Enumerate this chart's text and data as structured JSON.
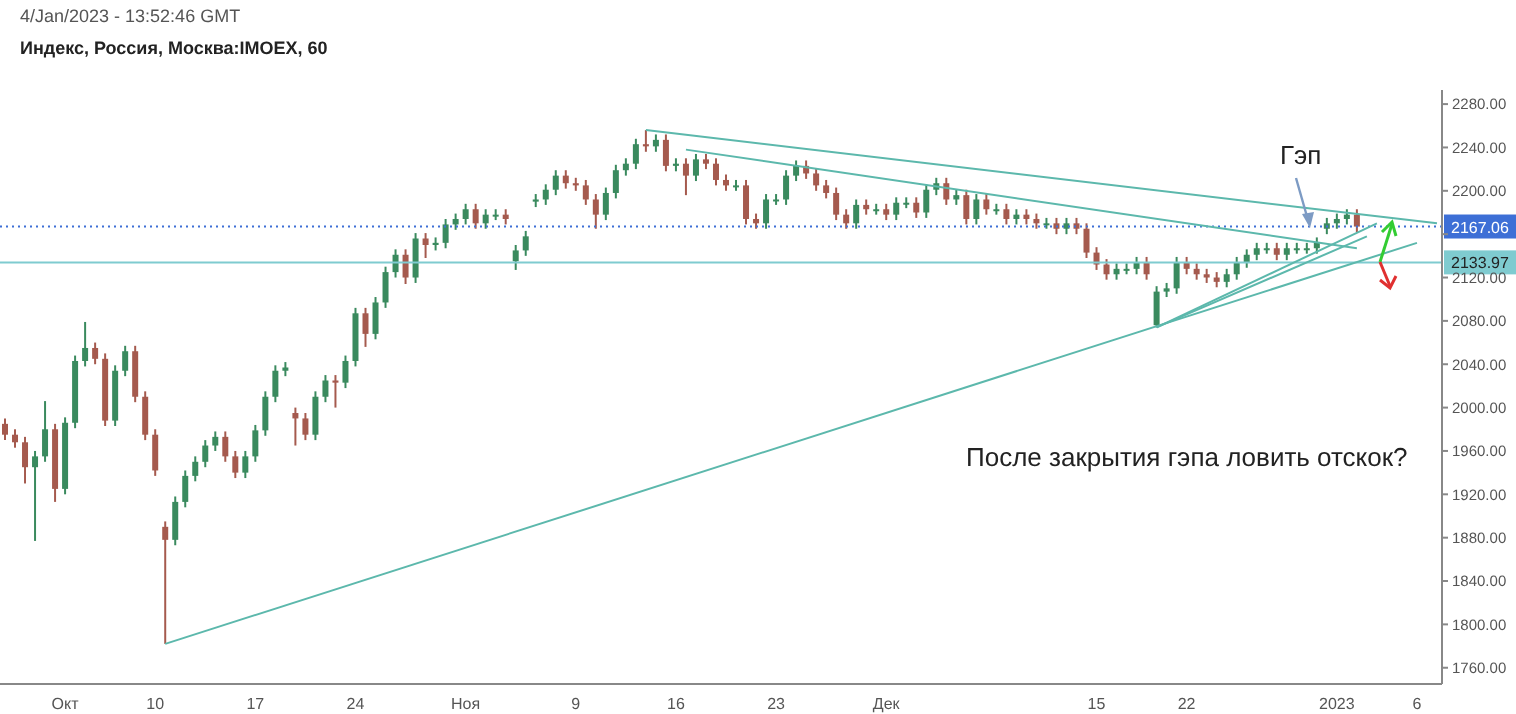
{
  "chart_data": {
    "type": "candlestick",
    "title": "Индекс, Россия, Москва:IMOEX, 60",
    "subtitle": "4/Jan/2023 - 13:52:46 GMT",
    "categories": [
      null,
      null,
      null,
      null,
      null,
      null,
      "Окт",
      null,
      null,
      null,
      null,
      null,
      null,
      null,
      null,
      "10",
      null,
      null,
      null,
      null,
      null,
      null,
      null,
      null,
      null,
      "17",
      null,
      null,
      null,
      null,
      null,
      null,
      null,
      null,
      null,
      "24",
      null,
      null,
      null,
      null,
      null,
      null,
      null,
      null,
      null,
      null,
      "Ноя",
      null,
      null,
      null,
      null,
      null,
      null,
      null,
      null,
      null,
      null,
      "9",
      null,
      null,
      null,
      null,
      null,
      null,
      null,
      null,
      null,
      "16",
      null,
      null,
      null,
      null,
      null,
      null,
      null,
      null,
      null,
      "23",
      null,
      null,
      null,
      null,
      null,
      null,
      null,
      null,
      null,
      null,
      "Дек",
      null,
      null,
      null,
      null,
      null,
      null,
      null,
      null,
      null,
      null,
      null,
      null,
      null,
      null,
      null,
      null,
      null,
      null,
      null,
      null,
      "15",
      null,
      null,
      null,
      null,
      null,
      null,
      null,
      null,
      "22",
      null,
      null,
      null,
      null,
      null,
      null,
      null,
      null,
      null,
      null,
      null,
      null,
      null,
      null,
      "2023",
      null,
      null,
      null,
      null,
      null,
      null,
      null,
      "6",
      null,
      null
    ],
    "series": [
      {
        "colors": [
          "#a55a4e",
          "#a55a4e",
          "#a55a4e",
          "#3a8a5e",
          "#3a8a5e",
          "#a55a4e",
          "#3a8a5e",
          "#3a8a5e",
          "#3a8a5e",
          "#a55a4e",
          "#a55a4e",
          "#3a8a5e",
          "#3a8a5e",
          "#a55a4e",
          "#a55a4e",
          "#a55a4e",
          "#a55a4e",
          "#3a8a5e",
          "#3a8a5e",
          "#3a8a5e",
          "#3a8a5e",
          "#3a8a5e",
          "#a55a4e",
          "#a55a4e",
          "#3a8a5e",
          "#3a8a5e",
          "#3a8a5e",
          "#3a8a5e",
          "#3a8a5e",
          "#a55a4e",
          "#a55a4e",
          "#3a8a5e",
          "#3a8a5e",
          "#a55a4e",
          "#3a8a5e",
          "#3a8a5e",
          "#a55a4e",
          "#3a8a5e",
          "#3a8a5e",
          "#3a8a5e",
          "#a55a4e",
          "#3a8a5e",
          "#a55a4e",
          "#3a8a5e",
          "#3a8a5e",
          "#3a8a5e",
          "#3a8a5e",
          "#a55a4e",
          "#3a8a5e",
          "#3a8a5e",
          "#a55a4e",
          "#3a8a5e",
          "#3a8a5e",
          "#3a8a5e",
          "#3a8a5e",
          "#3a8a5e",
          "#a55a4e",
          "#a55a4e",
          "#a55a4e",
          "#a55a4e",
          "#3a8a5e",
          "#3a8a5e",
          "#3a8a5e",
          "#3a8a5e",
          "#a55a4e",
          "#3a8a5e",
          "#a55a4e",
          "#3a8a5e",
          "#a55a4e",
          "#3a8a5e",
          "#a55a4e",
          "#a55a4e",
          "#a55a4e",
          "#3a8a5e",
          "#a55a4e",
          "#a55a4e",
          "#3a8a5e",
          "#3a8a5e",
          "#3a8a5e",
          "#3a8a5e",
          "#a55a4e",
          "#a55a4e",
          "#a55a4e",
          "#a55a4e",
          "#a55a4e",
          "#3a8a5e",
          "#a55a4e",
          "#3a8a5e",
          "#a55a4e",
          "#3a8a5e",
          "#3a8a5e",
          "#a55a4e",
          "#3a8a5e",
          "#3a8a5e",
          "#a55a4e",
          "#3a8a5e",
          "#a55a4e",
          "#3a8a5e",
          "#a55a4e",
          "#3a8a5e",
          "#a55a4e",
          "#3a8a5e",
          "#a55a4e",
          "#a55a4e",
          "#3a8a5e",
          "#a55a4e",
          "#3a8a5e",
          "#a55a4e",
          "#a55a4e",
          "#a55a4e",
          "#a55a4e",
          "#3a8a5e",
          "#3a8a5e",
          "#3a8a5e",
          "#a55a4e",
          "#3a8a5e",
          "#3a8a5e",
          "#3a8a5e",
          "#a55a4e",
          "#a55a4e",
          "#a55a4e",
          "#a55a4e",
          "#3a8a5e",
          "#3a8a5e",
          "#3a8a5e",
          "#3a8a5e",
          "#3a8a5e",
          "#a55a4e",
          "#3a8a5e",
          "#3a8a5e",
          "#3a8a5e",
          "#3a8a5e",
          "#3a8a5e",
          "#3a8a5e",
          "#3a8a5e",
          "#a55a4e",
          null,
          null,
          null,
          null,
          null,
          null,
          null,
          null
        ],
        "ohlc": [
          [
            1985,
            1990,
            1970,
            1975
          ],
          [
            1975,
            1980,
            1963,
            1968
          ],
          [
            1968,
            1973,
            1930,
            1945
          ],
          [
            1945,
            1960,
            1877,
            1955
          ],
          [
            1955,
            2006,
            1950,
            1980
          ],
          [
            1980,
            1985,
            1913,
            1925
          ],
          [
            1925,
            1991,
            1920,
            1986
          ],
          [
            1986,
            2048,
            1981,
            2043
          ],
          [
            2043,
            2079,
            2038,
            2055
          ],
          [
            2055,
            2060,
            2040,
            2045
          ],
          [
            2045,
            2050,
            1983,
            1988
          ],
          [
            1988,
            2039,
            1983,
            2034
          ],
          [
            2034,
            2057,
            2029,
            2052
          ],
          [
            2052,
            2057,
            2005,
            2010
          ],
          [
            2010,
            2015,
            1970,
            1975
          ],
          [
            1975,
            1980,
            1937,
            1942
          ],
          [
            1890,
            1895,
            1782,
            1878
          ],
          [
            1878,
            1918,
            1873,
            1913
          ],
          [
            1913,
            1942,
            1908,
            1937
          ],
          [
            1937,
            1955,
            1932,
            1950
          ],
          [
            1950,
            1970,
            1945,
            1965
          ],
          [
            1965,
            1978,
            1960,
            1973
          ],
          [
            1973,
            1978,
            1950,
            1955
          ],
          [
            1955,
            1960,
            1935,
            1940
          ],
          [
            1940,
            1960,
            1935,
            1955
          ],
          [
            1955,
            1984,
            1950,
            1979
          ],
          [
            1979,
            2015,
            1974,
            2010
          ],
          [
            2010,
            2039,
            2005,
            2034
          ],
          [
            2034,
            2042,
            2029,
            2037
          ],
          [
            1995,
            2000,
            1965,
            1990
          ],
          [
            1990,
            1995,
            1970,
            1975
          ],
          [
            1975,
            2015,
            1970,
            2010
          ],
          [
            2010,
            2030,
            2005,
            2025
          ],
          [
            2025,
            2030,
            2000,
            2023
          ],
          [
            2023,
            2048,
            2018,
            2043
          ],
          [
            2043,
            2092,
            2038,
            2087
          ],
          [
            2087,
            2092,
            2056,
            2068
          ],
          [
            2068,
            2102,
            2063,
            2097
          ],
          [
            2097,
            2130,
            2092,
            2125
          ],
          [
            2125,
            2146,
            2120,
            2141
          ],
          [
            2141,
            2146,
            2114,
            2120
          ],
          [
            2120,
            2161,
            2115,
            2156
          ],
          [
            2156,
            2161,
            2138,
            2150
          ],
          [
            2150,
            2157,
            2145,
            2152
          ],
          [
            2152,
            2174,
            2147,
            2169
          ],
          [
            2169,
            2179,
            2164,
            2174
          ],
          [
            2174,
            2188,
            2169,
            2183
          ],
          [
            2183,
            2188,
            2165,
            2170
          ],
          [
            2170,
            2183,
            2165,
            2178
          ],
          [
            2178,
            2183,
            2173,
            2178
          ],
          [
            2178,
            2183,
            2169,
            2174
          ],
          [
            2135,
            2150,
            2127,
            2145
          ],
          [
            2145,
            2163,
            2140,
            2158
          ],
          [
            2190,
            2197,
            2185,
            2192
          ],
          [
            2192,
            2206,
            2187,
            2201
          ],
          [
            2201,
            2219,
            2196,
            2214
          ],
          [
            2214,
            2219,
            2202,
            2207
          ],
          [
            2207,
            2212,
            2200,
            2205
          ],
          [
            2205,
            2210,
            2187,
            2192
          ],
          [
            2192,
            2197,
            2165,
            2178
          ],
          [
            2178,
            2203,
            2173,
            2198
          ],
          [
            2198,
            2224,
            2193,
            2219
          ],
          [
            2219,
            2230,
            2214,
            2225
          ],
          [
            2225,
            2248,
            2220,
            2243
          ],
          [
            2243,
            2256,
            2236,
            2241
          ],
          [
            2241,
            2252,
            2236,
            2247
          ],
          [
            2247,
            2252,
            2218,
            2223
          ],
          [
            2223,
            2230,
            2218,
            2225
          ],
          [
            2225,
            2230,
            2196,
            2214
          ],
          [
            2214,
            2234,
            2209,
            2229
          ],
          [
            2229,
            2234,
            2220,
            2225
          ],
          [
            2225,
            2230,
            2205,
            2210
          ],
          [
            2210,
            2215,
            2200,
            2205
          ],
          [
            2205,
            2210,
            2200,
            2205
          ],
          [
            2205,
            2210,
            2169,
            2174
          ],
          [
            2174,
            2179,
            2165,
            2170
          ],
          [
            2170,
            2197,
            2165,
            2192
          ],
          [
            2192,
            2197,
            2187,
            2192
          ],
          [
            2192,
            2219,
            2187,
            2214
          ],
          [
            2214,
            2228,
            2209,
            2223
          ],
          [
            2223,
            2228,
            2211,
            2216
          ],
          [
            2216,
            2221,
            2200,
            2205
          ],
          [
            2205,
            2210,
            2193,
            2198
          ],
          [
            2198,
            2203,
            2173,
            2178
          ],
          [
            2178,
            2183,
            2165,
            2170
          ],
          [
            2170,
            2192,
            2165,
            2187
          ],
          [
            2187,
            2192,
            2178,
            2183
          ],
          [
            2183,
            2188,
            2178,
            2183
          ],
          [
            2183,
            2188,
            2173,
            2178
          ],
          [
            2178,
            2194,
            2173,
            2189
          ],
          [
            2189,
            2194,
            2184,
            2189
          ],
          [
            2189,
            2194,
            2175,
            2180
          ],
          [
            2180,
            2206,
            2175,
            2201
          ],
          [
            2201,
            2212,
            2196,
            2207
          ],
          [
            2207,
            2212,
            2187,
            2192
          ],
          [
            2192,
            2201,
            2187,
            2196
          ],
          [
            2196,
            2201,
            2169,
            2174
          ],
          [
            2174,
            2197,
            2169,
            2192
          ],
          [
            2192,
            2197,
            2178,
            2183
          ],
          [
            2183,
            2188,
            2178,
            2183
          ],
          [
            2183,
            2188,
            2169,
            2174
          ],
          [
            2174,
            2183,
            2169,
            2178
          ],
          [
            2178,
            2183,
            2169,
            2174
          ],
          [
            2174,
            2179,
            2165,
            2170
          ],
          [
            2170,
            2175,
            2165,
            2170
          ],
          [
            2170,
            2175,
            2160,
            2165
          ],
          [
            2165,
            2175,
            2160,
            2170
          ],
          [
            2170,
            2175,
            2160,
            2165
          ],
          [
            2165,
            2170,
            2138,
            2143
          ],
          [
            2143,
            2148,
            2127,
            2132
          ],
          [
            2132,
            2137,
            2118,
            2123
          ],
          [
            2123,
            2133,
            2118,
            2128
          ],
          [
            2128,
            2133,
            2123,
            2128
          ],
          [
            2128,
            2139,
            2123,
            2134
          ],
          [
            2134,
            2139,
            2118,
            2123
          ],
          [
            2076,
            2112,
            2074,
            2107
          ],
          [
            2107,
            2115,
            2102,
            2110
          ],
          [
            2110,
            2139,
            2105,
            2134
          ],
          [
            2134,
            2139,
            2123,
            2128
          ],
          [
            2128,
            2133,
            2118,
            2123
          ],
          [
            2123,
            2128,
            2115,
            2120
          ],
          [
            2120,
            2125,
            2111,
            2116
          ],
          [
            2116,
            2128,
            2111,
            2123
          ],
          [
            2123,
            2139,
            2118,
            2134
          ],
          [
            2134,
            2146,
            2129,
            2141
          ],
          [
            2141,
            2152,
            2136,
            2147
          ],
          [
            2147,
            2152,
            2142,
            2147
          ],
          [
            2147,
            2152,
            2136,
            2141
          ],
          [
            2141,
            2152,
            2136,
            2147
          ],
          [
            2147,
            2152,
            2142,
            2147
          ],
          [
            2147,
            2152,
            2142,
            2147
          ],
          [
            2147,
            2157,
            2142,
            2152
          ],
          [
            2165,
            2175,
            2160,
            2170
          ],
          [
            2170,
            2179,
            2165,
            2174
          ],
          [
            2174,
            2183,
            2169,
            2178
          ],
          [
            2178,
            2183,
            2162,
            2167
          ],
          null,
          null,
          null,
          null,
          null,
          null,
          null,
          null
        ]
      },
      {
        "type": "line",
        "color": "#5cb8ac",
        "values": [
          null,
          null,
          null,
          null,
          null,
          null,
          null,
          null,
          null,
          null,
          null,
          null,
          null,
          null,
          null,
          null,
          1782,
          null,
          null,
          null,
          null,
          null,
          null,
          null,
          null,
          null,
          null,
          null,
          null,
          null,
          null,
          null,
          null,
          null,
          null,
          null,
          null,
          null,
          null,
          null,
          null,
          null,
          null,
          null,
          null,
          null,
          null,
          null,
          null,
          null,
          null,
          null,
          null,
          null,
          null,
          null,
          null,
          null,
          null,
          null,
          null,
          null,
          null,
          null,
          null,
          null,
          null,
          null,
          null,
          null,
          null,
          null,
          null,
          null,
          null,
          null,
          null,
          null,
          null,
          null,
          null,
          null,
          null,
          null,
          null,
          null,
          null,
          null,
          null,
          null,
          null,
          null,
          null,
          null,
          null,
          null,
          null,
          null,
          null,
          null,
          null,
          null,
          null,
          null,
          null,
          null,
          null,
          null,
          null,
          null,
          null,
          null,
          null,
          null,
          null,
          null,
          null,
          null,
          null,
          null,
          null,
          null,
          null,
          null,
          null,
          null,
          null,
          null,
          null,
          null,
          null,
          null,
          null,
          null,
          null,
          null,
          null,
          null,
          null,
          null,
          null,
          2152,
          null,
          null
        ]
      },
      {
        "type": "line",
        "color": "#5cb8ac",
        "values": [
          null,
          null,
          null,
          null,
          null,
          null,
          null,
          null,
          null,
          null,
          null,
          null,
          null,
          null,
          null,
          null,
          null,
          null,
          null,
          null,
          null,
          null,
          null,
          null,
          null,
          null,
          null,
          null,
          null,
          null,
          null,
          null,
          null,
          null,
          null,
          null,
          null,
          null,
          null,
          null,
          null,
          null,
          null,
          null,
          null,
          null,
          null,
          null,
          null,
          null,
          null,
          null,
          null,
          null,
          null,
          null,
          null,
          null,
          null,
          null,
          null,
          null,
          null,
          null,
          2256,
          null,
          null,
          null,
          null,
          null,
          null,
          null,
          null,
          null,
          null,
          null,
          null,
          null,
          null,
          null,
          null,
          null,
          null,
          null,
          null,
          null,
          null,
          null,
          null,
          null,
          null,
          null,
          null,
          null,
          null,
          null,
          null,
          null,
          null,
          null,
          null,
          null,
          null,
          null,
          null,
          null,
          null,
          null,
          null,
          null,
          null,
          null,
          null,
          null,
          null,
          null,
          null,
          null,
          null,
          null,
          null,
          null,
          null,
          null,
          null,
          null,
          null,
          null,
          null,
          null,
          null,
          null,
          null,
          null,
          null,
          null,
          null,
          null,
          null,
          null,
          null,
          null,
          null,
          2170
        ]
      },
      {
        "type": "line",
        "color": "#5cb8ac",
        "values": [
          null,
          null,
          null,
          null,
          null,
          null,
          null,
          null,
          null,
          null,
          null,
          null,
          null,
          null,
          null,
          null,
          null,
          null,
          null,
          null,
          null,
          null,
          null,
          null,
          null,
          null,
          null,
          null,
          null,
          null,
          null,
          null,
          null,
          null,
          null,
          null,
          null,
          null,
          null,
          null,
          null,
          null,
          null,
          null,
          null,
          null,
          null,
          null,
          null,
          null,
          null,
          null,
          null,
          null,
          null,
          null,
          null,
          null,
          null,
          null,
          null,
          null,
          null,
          null,
          null,
          null,
          null,
          null,
          2238,
          null,
          null,
          null,
          null,
          null,
          null,
          null,
          null,
          null,
          null,
          null,
          null,
          null,
          null,
          null,
          null,
          null,
          null,
          null,
          null,
          null,
          null,
          null,
          null,
          null,
          null,
          null,
          null,
          null,
          null,
          null,
          null,
          null,
          null,
          null,
          null,
          null,
          null,
          null,
          null,
          null,
          null,
          null,
          null,
          null,
          null,
          null,
          null,
          null,
          null,
          null,
          null,
          null,
          null,
          null,
          null,
          null,
          null,
          null,
          null,
          null,
          null,
          null,
          null,
          null,
          null,
          2147,
          null,
          null,
          null,
          null,
          null,
          null,
          null,
          null
        ]
      },
      {
        "type": "line",
        "color": "#5cb8ac",
        "values": [
          null,
          null,
          null,
          null,
          null,
          null,
          null,
          null,
          null,
          null,
          null,
          null,
          null,
          null,
          null,
          null,
          null,
          null,
          null,
          null,
          null,
          null,
          null,
          null,
          null,
          null,
          null,
          null,
          null,
          null,
          null,
          null,
          null,
          null,
          null,
          null,
          null,
          null,
          null,
          null,
          null,
          null,
          null,
          null,
          null,
          null,
          null,
          null,
          null,
          null,
          null,
          null,
          null,
          null,
          null,
          null,
          null,
          null,
          null,
          null,
          null,
          null,
          null,
          null,
          null,
          null,
          null,
          null,
          null,
          null,
          null,
          null,
          null,
          null,
          null,
          null,
          null,
          null,
          null,
          null,
          null,
          null,
          null,
          null,
          null,
          null,
          null,
          null,
          null,
          null,
          null,
          null,
          null,
          null,
          null,
          null,
          null,
          null,
          null,
          null,
          null,
          null,
          null,
          null,
          null,
          null,
          null,
          null,
          null,
          null,
          null,
          null,
          null,
          null,
          null,
          2074,
          null,
          null,
          null,
          null,
          null,
          null,
          null,
          null,
          null,
          null,
          null,
          null,
          null,
          null,
          null,
          null,
          null,
          null,
          null,
          null,
          null,
          2170,
          null,
          null,
          null,
          null,
          null,
          null
        ]
      },
      {
        "type": "line",
        "color": "#5cb8ac",
        "values": [
          null,
          null,
          null,
          null,
          null,
          null,
          null,
          null,
          null,
          null,
          null,
          null,
          null,
          null,
          null,
          null,
          null,
          null,
          null,
          null,
          null,
          null,
          null,
          null,
          null,
          null,
          null,
          null,
          null,
          null,
          null,
          null,
          null,
          null,
          null,
          null,
          null,
          null,
          null,
          null,
          null,
          null,
          null,
          null,
          null,
          null,
          null,
          null,
          null,
          null,
          null,
          null,
          null,
          null,
          null,
          null,
          null,
          null,
          null,
          null,
          null,
          null,
          null,
          null,
          null,
          null,
          null,
          null,
          null,
          null,
          null,
          null,
          null,
          null,
          null,
          null,
          null,
          null,
          null,
          null,
          null,
          null,
          null,
          null,
          null,
          null,
          null,
          null,
          null,
          null,
          null,
          null,
          null,
          null,
          null,
          null,
          null,
          null,
          null,
          null,
          null,
          null,
          null,
          null,
          null,
          null,
          null,
          null,
          null,
          null,
          null,
          null,
          null,
          null,
          null,
          2074,
          null,
          null,
          null,
          null,
          null,
          null,
          null,
          null,
          null,
          null,
          null,
          null,
          null,
          null,
          null,
          null,
          null,
          null,
          null,
          null,
          2158,
          null,
          null,
          null,
          null,
          null,
          null,
          null
        ]
      }
    ],
    "ylim": [
      1745,
      2293
    ],
    "yticks": [
      {
        "value": 1760,
        "label": "1760.00"
      },
      {
        "value": 1800,
        "label": "1800.00"
      },
      {
        "value": 1840,
        "label": "1840.00"
      },
      {
        "value": 1880,
        "label": "1880.00"
      },
      {
        "value": 1920,
        "label": "1920.00"
      },
      {
        "value": 1960,
        "label": "1960.00"
      },
      {
        "value": 2000,
        "label": "2000.00"
      },
      {
        "value": 2040,
        "label": "2040.00"
      },
      {
        "value": 2080,
        "label": "2080.00"
      },
      {
        "value": 2120,
        "label": "2120.00"
      },
      {
        "value": 2160,
        "label": null
      },
      {
        "value": 2200,
        "label": "2200.00"
      },
      {
        "value": 2240,
        "label": "2240.00"
      },
      {
        "value": 2280,
        "label": "2280.00"
      }
    ],
    "ref_lines": [
      {
        "axis": "y",
        "value": 2167.06,
        "label": "2167.06",
        "color": "#3d6fd6",
        "line_style": "dotted"
      },
      {
        "axis": "y",
        "value": 2133.97,
        "label": "2133.97",
        "color": "#7fcbd0",
        "line_style": "solid"
      }
    ],
    "annotations": [
      "Гэп",
      "После закрытия гэпа ловить отскок?"
    ]
  }
}
